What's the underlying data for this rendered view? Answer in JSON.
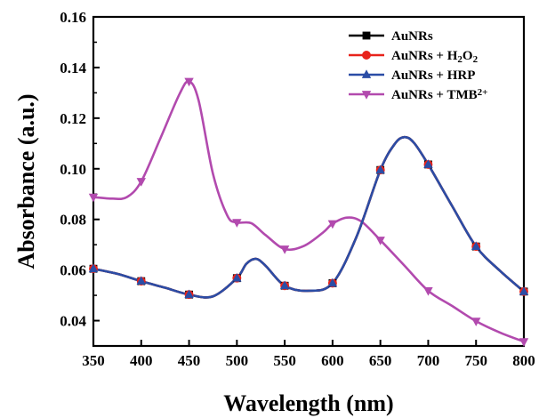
{
  "chart_data": {
    "type": "line",
    "xlabel": "Wavelength (nm)",
    "ylabel": "Absorbance (a.u.)",
    "xlim": [
      350,
      800
    ],
    "ylim": [
      0.03,
      0.16
    ],
    "x_ticks": [
      "350",
      "400",
      "450",
      "500",
      "550",
      "600",
      "650",
      "700",
      "750",
      "800"
    ],
    "y_ticks": [
      "0.04",
      "0.06",
      "0.08",
      "0.10",
      "0.12",
      "0.14",
      "0.16"
    ],
    "legend_position": "top-right",
    "grid": false,
    "series": [
      {
        "name": "AuNRs",
        "legend_parts": [
          {
            "t": "AuNRs"
          }
        ],
        "color": "#000000",
        "marker": "square",
        "curve": [
          [
            350,
            0.0605
          ],
          [
            375,
            0.0585
          ],
          [
            400,
            0.0556
          ],
          [
            425,
            0.053
          ],
          [
            450,
            0.0503
          ],
          [
            475,
            0.0496
          ],
          [
            500,
            0.0568
          ],
          [
            510,
            0.0625
          ],
          [
            520,
            0.0644
          ],
          [
            530,
            0.0617
          ],
          [
            550,
            0.0538
          ],
          [
            575,
            0.0518
          ],
          [
            600,
            0.0548
          ],
          [
            625,
            0.0731
          ],
          [
            650,
            0.0995
          ],
          [
            665,
            0.1098
          ],
          [
            675,
            0.1125
          ],
          [
            685,
            0.1103
          ],
          [
            700,
            0.1017
          ],
          [
            725,
            0.0853
          ],
          [
            750,
            0.0693
          ],
          [
            775,
            0.0597
          ],
          [
            800,
            0.0515
          ]
        ],
        "markers": [
          [
            350,
            0.0605
          ],
          [
            400,
            0.0556
          ],
          [
            450,
            0.0503
          ],
          [
            500,
            0.0568
          ],
          [
            550,
            0.0538
          ],
          [
            600,
            0.0548
          ],
          [
            650,
            0.0995
          ],
          [
            700,
            0.1017
          ],
          [
            750,
            0.0693
          ],
          [
            800,
            0.0515
          ]
        ]
      },
      {
        "name": "AuNRs + H2O2",
        "legend_parts": [
          {
            "t": "AuNRs + H"
          },
          {
            "t": "2",
            "sub": true
          },
          {
            "t": "O"
          },
          {
            "t": "2",
            "sub": true
          }
        ],
        "color": "#e8231b",
        "marker": "circle",
        "curve": [
          [
            350,
            0.0605
          ],
          [
            375,
            0.0585
          ],
          [
            400,
            0.0556
          ],
          [
            425,
            0.053
          ],
          [
            450,
            0.0503
          ],
          [
            475,
            0.0496
          ],
          [
            500,
            0.0568
          ],
          [
            510,
            0.0625
          ],
          [
            520,
            0.0644
          ],
          [
            530,
            0.0617
          ],
          [
            550,
            0.0538
          ],
          [
            575,
            0.0518
          ],
          [
            600,
            0.0548
          ],
          [
            625,
            0.0731
          ],
          [
            650,
            0.0995
          ],
          [
            665,
            0.1098
          ],
          [
            675,
            0.1125
          ],
          [
            685,
            0.1103
          ],
          [
            700,
            0.1017
          ],
          [
            725,
            0.0853
          ],
          [
            750,
            0.0693
          ],
          [
            775,
            0.0597
          ],
          [
            800,
            0.0515
          ]
        ],
        "markers": [
          [
            350,
            0.0605
          ],
          [
            400,
            0.0556
          ],
          [
            450,
            0.0503
          ],
          [
            500,
            0.0568
          ],
          [
            550,
            0.0538
          ],
          [
            600,
            0.0548
          ],
          [
            650,
            0.0995
          ],
          [
            700,
            0.1017
          ],
          [
            750,
            0.0693
          ],
          [
            800,
            0.0515
          ]
        ]
      },
      {
        "name": "AuNRs + HRP",
        "legend_parts": [
          {
            "t": "AuNRs + HRP"
          }
        ],
        "color": "#2b4da6",
        "marker": "triangle-up",
        "curve": [
          [
            350,
            0.0605
          ],
          [
            375,
            0.0585
          ],
          [
            400,
            0.0556
          ],
          [
            425,
            0.053
          ],
          [
            450,
            0.0503
          ],
          [
            475,
            0.0496
          ],
          [
            500,
            0.0568
          ],
          [
            510,
            0.0625
          ],
          [
            520,
            0.0644
          ],
          [
            530,
            0.0617
          ],
          [
            550,
            0.0538
          ],
          [
            575,
            0.0518
          ],
          [
            600,
            0.0548
          ],
          [
            625,
            0.0731
          ],
          [
            650,
            0.0995
          ],
          [
            665,
            0.1098
          ],
          [
            675,
            0.1125
          ],
          [
            685,
            0.1103
          ],
          [
            700,
            0.1017
          ],
          [
            725,
            0.0853
          ],
          [
            750,
            0.0693
          ],
          [
            775,
            0.0597
          ],
          [
            800,
            0.0515
          ]
        ],
        "markers": [
          [
            350,
            0.0605
          ],
          [
            400,
            0.0556
          ],
          [
            450,
            0.0503
          ],
          [
            500,
            0.0568
          ],
          [
            550,
            0.0538
          ],
          [
            600,
            0.0548
          ],
          [
            650,
            0.0995
          ],
          [
            700,
            0.1017
          ],
          [
            750,
            0.0693
          ],
          [
            800,
            0.0515
          ]
        ]
      },
      {
        "name": "AuNRs + TMB2+",
        "legend_parts": [
          {
            "t": "AuNRs + TMB"
          },
          {
            "t": "2+",
            "sup": true
          }
        ],
        "color": "#b24aae",
        "marker": "triangle-down",
        "curve": [
          [
            350,
            0.0888
          ],
          [
            370,
            0.0882
          ],
          [
            385,
            0.0888
          ],
          [
            400,
            0.095
          ],
          [
            420,
            0.112
          ],
          [
            440,
            0.1295
          ],
          [
            450,
            0.1345
          ],
          [
            460,
            0.127
          ],
          [
            475,
            0.098
          ],
          [
            490,
            0.0815
          ],
          [
            500,
            0.0788
          ],
          [
            515,
            0.0785
          ],
          [
            530,
            0.0738
          ],
          [
            550,
            0.0683
          ],
          [
            570,
            0.0695
          ],
          [
            590,
            0.0748
          ],
          [
            600,
            0.0783
          ],
          [
            615,
            0.0807
          ],
          [
            630,
            0.0792
          ],
          [
            650,
            0.0718
          ],
          [
            675,
            0.0618
          ],
          [
            700,
            0.0518
          ],
          [
            725,
            0.0458
          ],
          [
            750,
            0.0398
          ],
          [
            775,
            0.0353
          ],
          [
            800,
            0.0317
          ]
        ],
        "markers": [
          [
            350,
            0.0888
          ],
          [
            400,
            0.095
          ],
          [
            450,
            0.1345
          ],
          [
            500,
            0.0788
          ],
          [
            550,
            0.0683
          ],
          [
            600,
            0.0783
          ],
          [
            650,
            0.0718
          ],
          [
            700,
            0.0518
          ],
          [
            750,
            0.0398
          ],
          [
            800,
            0.0317
          ]
        ]
      }
    ]
  }
}
